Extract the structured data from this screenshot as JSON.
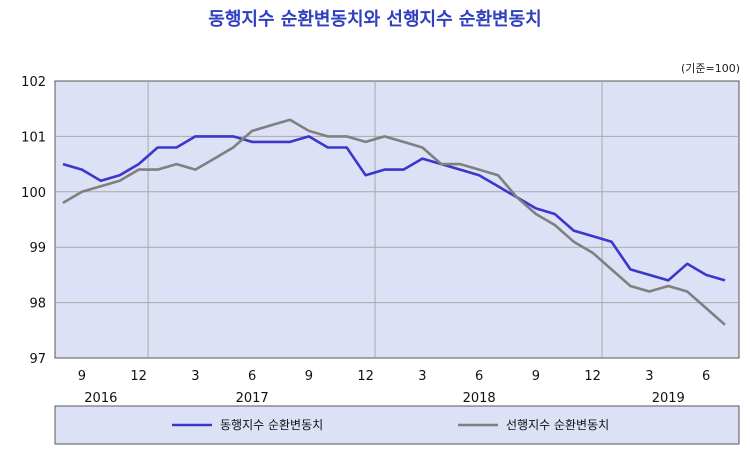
{
  "header": {
    "title": "동행지수 순환변동치와 선행지수 순환변동치",
    "unit_note": "(기준=100)"
  },
  "chart_data": {
    "type": "line",
    "title": "동행지수 순환변동치와 선행지수 순환변동치",
    "ylim": [
      97,
      102
    ],
    "yticks": [
      97,
      98,
      99,
      100,
      101,
      102
    ],
    "xrange": [
      0,
      35
    ],
    "x_month_ticks": [
      {
        "x": 1,
        "label": "9"
      },
      {
        "x": 4,
        "label": "12"
      },
      {
        "x": 7,
        "label": "3"
      },
      {
        "x": 10,
        "label": "6"
      },
      {
        "x": 13,
        "label": "9"
      },
      {
        "x": 16,
        "label": "12"
      },
      {
        "x": 19,
        "label": "3"
      },
      {
        "x": 22,
        "label": "6"
      },
      {
        "x": 25,
        "label": "9"
      },
      {
        "x": 28,
        "label": "12"
      },
      {
        "x": 31,
        "label": "3"
      },
      {
        "x": 34,
        "label": "6"
      }
    ],
    "x_year_labels": [
      {
        "x": 2,
        "label": "2016"
      },
      {
        "x": 10,
        "label": "2017"
      },
      {
        "x": 22,
        "label": "2018"
      },
      {
        "x": 32,
        "label": "2019"
      }
    ],
    "year_boundaries": [
      4.5,
      16.5,
      28.5
    ],
    "series": [
      {
        "name": "동행지수 순환변동치",
        "color": "#3c37cc",
        "values": [
          100.5,
          100.4,
          100.2,
          100.3,
          100.5,
          100.8,
          100.8,
          101.0,
          101.0,
          101.0,
          100.9,
          100.9,
          100.9,
          101.0,
          100.8,
          100.8,
          100.3,
          100.4,
          100.4,
          100.6,
          100.5,
          100.4,
          100.3,
          100.1,
          99.9,
          99.7,
          99.6,
          99.3,
          99.2,
          99.1,
          98.6,
          98.5,
          98.4,
          98.7,
          98.5,
          98.4
        ]
      },
      {
        "name": "선행지수 순환변동치",
        "color": "#808080",
        "values": [
          99.8,
          100.0,
          100.1,
          100.2,
          100.4,
          100.4,
          100.5,
          100.4,
          100.6,
          100.8,
          101.1,
          101.2,
          101.3,
          101.1,
          101.0,
          101.0,
          100.9,
          101.0,
          100.9,
          100.8,
          100.5,
          100.5,
          100.4,
          100.3,
          99.9,
          99.6,
          99.4,
          99.1,
          98.9,
          98.6,
          98.3,
          98.2,
          98.3,
          98.2,
          97.9,
          97.6
        ]
      }
    ]
  }
}
